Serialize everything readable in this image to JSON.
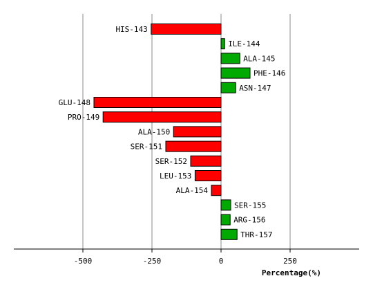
{
  "chart_data": {
    "type": "bar",
    "orientation": "horizontal",
    "title": "",
    "xlabel": "Percentage(%)",
    "ylabel": "",
    "xlim": [
      -750,
      500
    ],
    "xticks": [
      -500,
      -250,
      0,
      250
    ],
    "grid": true,
    "legend": "none",
    "positive_color": "#00aa00",
    "negative_color": "#ff0000",
    "categories": [
      "HIS-143",
      "ILE-144",
      "ALA-145",
      "PHE-146",
      "ASN-147",
      "GLU-148",
      "PRO-149",
      "ALA-150",
      "SER-151",
      "SER-152",
      "LEU-153",
      "ALA-154",
      "SER-155",
      "ARG-156",
      "THR-157"
    ],
    "values": [
      -253,
      13,
      68,
      105,
      53,
      -460,
      -427,
      -172,
      -200,
      -110,
      -94,
      -35,
      35,
      33,
      58
    ]
  }
}
